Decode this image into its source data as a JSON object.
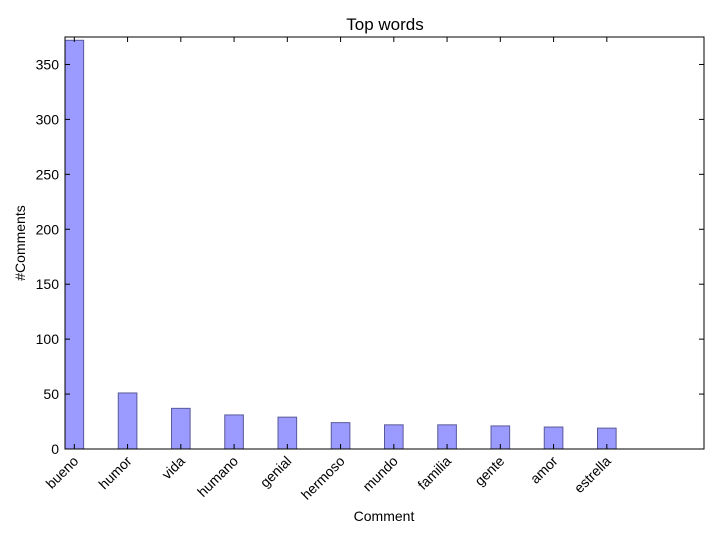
{
  "chart_data": {
    "type": "bar",
    "title": "Top words",
    "xlabel": "Comment",
    "ylabel": "#Comments",
    "categories": [
      "bueno",
      "humor",
      "vida",
      "humano",
      "genial",
      "hermoso",
      "mundo",
      "familia",
      "gente",
      "amor",
      "estrella"
    ],
    "values": [
      372,
      51,
      37,
      31,
      29,
      24,
      22,
      22,
      21,
      20,
      19
    ],
    "ylim": [
      0,
      375
    ],
    "yticks": [
      0,
      50,
      100,
      150,
      200,
      250,
      300,
      350
    ],
    "xlim": [
      0,
      12
    ],
    "grid": false,
    "bar_color": "#9a9aff",
    "bar_edge_color": "#5a5a9a"
  }
}
